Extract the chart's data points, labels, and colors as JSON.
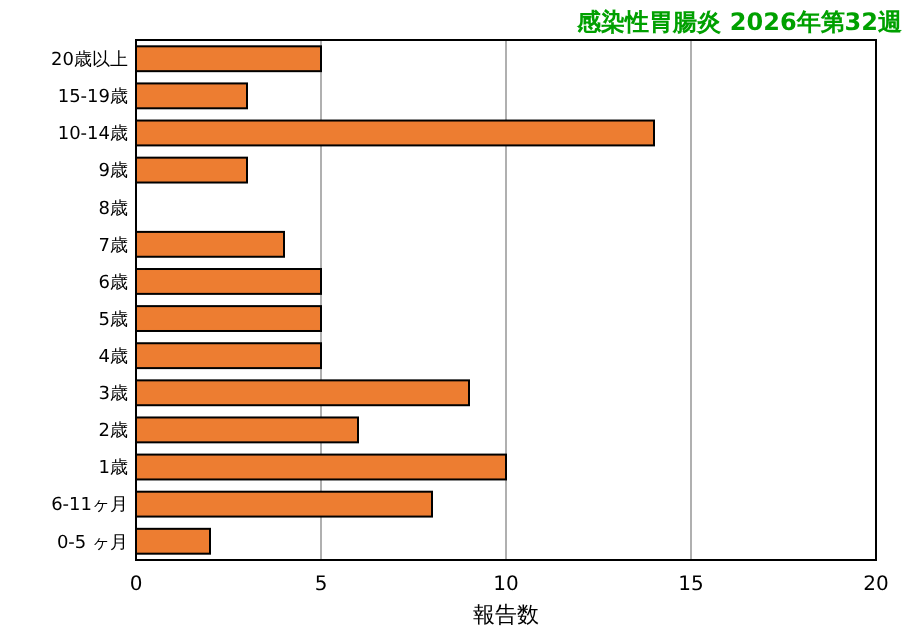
{
  "chart_data": {
    "type": "bar",
    "orientation": "horizontal",
    "title": "感染性胃腸炎 2026年第32週",
    "xlabel": "報告数",
    "categories": [
      "20歳以上",
      "15-19歳",
      "10-14歳",
      "9歳",
      "8歳",
      "7歳",
      "6歳",
      "5歳",
      "4歳",
      "3歳",
      "2歳",
      "1歳",
      "6-11ヶ月",
      "0-5 ヶ月"
    ],
    "values": [
      5,
      3,
      14,
      3,
      0,
      4,
      5,
      5,
      5,
      9,
      6,
      10,
      8,
      2
    ],
    "color": "#ed7d31",
    "xlim": [
      0,
      20
    ],
    "xticks": [
      0,
      5,
      10,
      15,
      20
    ],
    "grid": "x"
  }
}
